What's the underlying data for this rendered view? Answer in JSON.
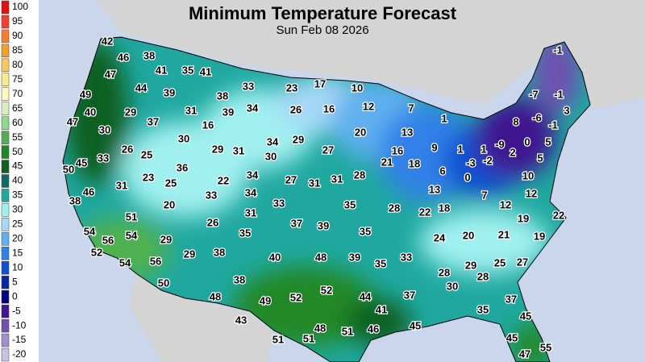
{
  "title": "Minimum Temperature Forecast",
  "subtitle": "Sun Feb 08 2026",
  "legend": {
    "levels": [
      100,
      95,
      90,
      85,
      80,
      75,
      70,
      65,
      60,
      55,
      50,
      45,
      40,
      35,
      30,
      25,
      20,
      15,
      10,
      5,
      0,
      -5,
      -10,
      -15,
      -20
    ],
    "colors": [
      "#e01010",
      "#f04030",
      "#f08030",
      "#f0a030",
      "#f8c860",
      "#f8e890",
      "#fff8c0",
      "#d8f0c0",
      "#90d890",
      "#50b050",
      "#208828",
      "#106020",
      "#106860",
      "#20a8a0",
      "#a0f0f0",
      "#a8d8f8",
      "#60b0f0",
      "#3080e8",
      "#1050d0",
      "#0828a0",
      "#000080",
      "#401890",
      "#7050b0",
      "#a090c8",
      "#c8c0e0"
    ]
  },
  "labels": [
    42,
    46,
    38,
    47,
    41,
    35,
    41,
    44,
    39,
    33,
    23,
    17,
    10,
    49,
    38,
    40,
    29,
    31,
    39,
    34,
    26,
    16,
    12,
    7,
    1,
    -1,
    -7,
    -1,
    3,
    8,
    -6,
    -1,
    37,
    16,
    47,
    30,
    20,
    13,
    30,
    34,
    29,
    26,
    25,
    29,
    31,
    27,
    16,
    9,
    1,
    1,
    -9,
    0,
    5,
    33,
    30,
    21,
    18,
    -3,
    -2,
    2,
    5,
    50,
    45,
    36,
    34,
    27,
    31,
    31,
    28,
    6,
    0,
    10,
    31,
    23,
    25,
    22,
    13,
    7,
    12,
    46,
    33,
    34,
    38,
    20,
    33,
    35,
    28,
    22,
    18,
    12,
    19,
    22,
    51,
    31,
    26,
    37,
    39,
    54,
    35,
    35,
    24,
    20,
    21,
    19,
    56,
    54,
    29,
    52,
    38,
    29,
    40,
    48,
    39,
    35,
    33,
    25,
    27,
    54,
    56,
    29,
    28,
    28,
    50,
    38,
    52,
    30,
    37,
    48,
    49,
    52,
    44,
    37,
    35,
    43,
    41,
    45,
    45,
    48,
    51,
    46,
    51,
    51,
    45,
    47,
    55
  ]
}
